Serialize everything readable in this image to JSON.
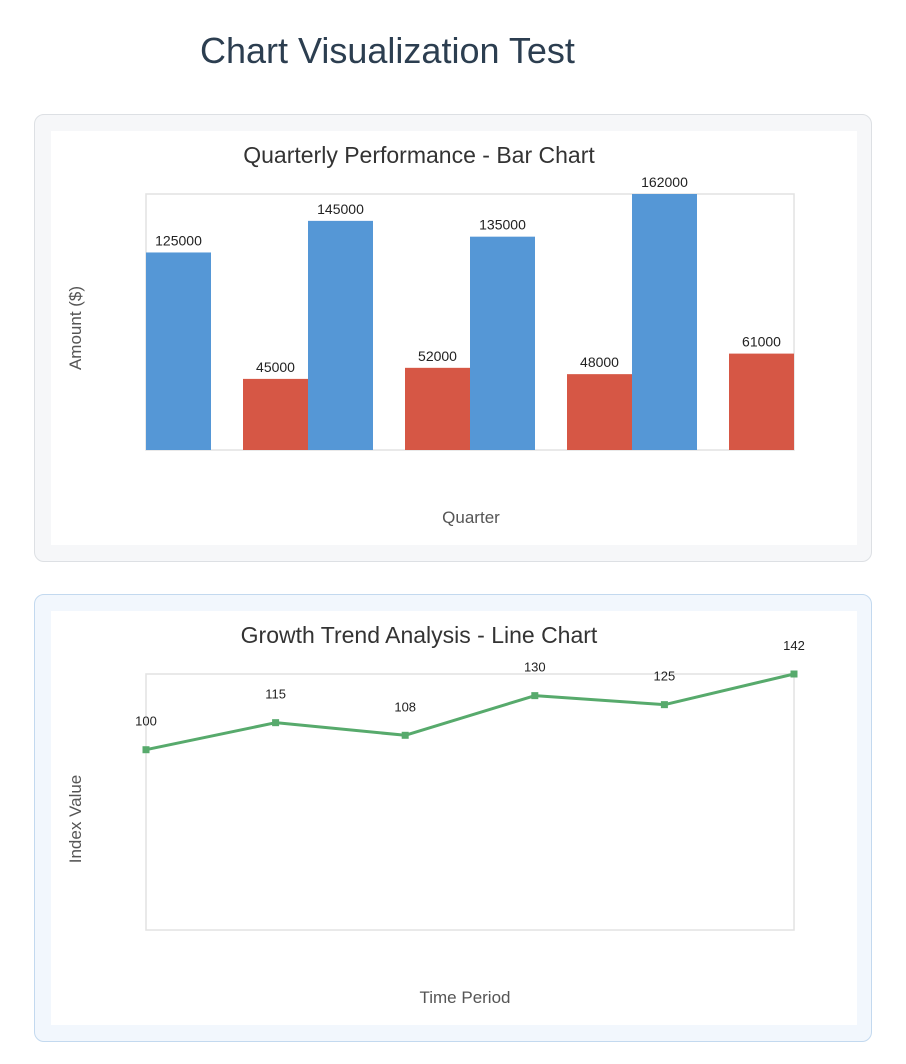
{
  "page": {
    "title": "Chart Visualization Test"
  },
  "chart_data": [
    {
      "type": "bar",
      "title": "Quarterly Performance - Bar Chart",
      "xlabel": "Quarter",
      "ylabel": "Amount ($)",
      "categories": [
        "",
        "",
        "",
        ""
      ],
      "series": [
        {
          "values": [
            125000,
            145000,
            135000,
            162000
          ],
          "color": "#5597d6"
        },
        {
          "values": [
            45000,
            52000,
            48000,
            61000
          ],
          "color": "#d65745"
        }
      ],
      "ylim": [
        0,
        162000
      ],
      "grid": false,
      "legend": "none"
    },
    {
      "type": "line",
      "title": "Growth Trend Analysis - Line Chart",
      "xlabel": "Time Period",
      "ylabel": "Index Value",
      "x": [
        1,
        2,
        3,
        4,
        5,
        6
      ],
      "series": [
        {
          "values": [
            100,
            115,
            108,
            130,
            125,
            142
          ],
          "color": "#57aa6c"
        }
      ],
      "ylim": [
        0,
        142
      ],
      "grid": false,
      "legend": "none"
    }
  ]
}
